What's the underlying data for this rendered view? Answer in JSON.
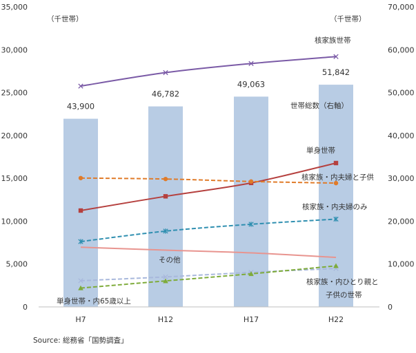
{
  "chart_data": {
    "type": "bar+line",
    "categories": [
      "H7",
      "H12",
      "H17",
      "H22"
    ],
    "left_axis": {
      "unit": "（千世帯）",
      "ylim": [
        0,
        35000
      ],
      "ticks": [
        "0",
        "5,000",
        "10,000",
        "15,000",
        "20,000",
        "25,000",
        "30,000",
        "35,000"
      ]
    },
    "right_axis": {
      "unit": "（千世帯）",
      "ylim": [
        0,
        70000
      ],
      "ticks": [
        "0",
        "10,000",
        "20,000",
        "30,000",
        "40,000",
        "50,000",
        "60,000",
        "70,000"
      ]
    },
    "bars": {
      "name": "世帯総数（右軸）",
      "axis": "right",
      "color": "#b8cce4",
      "values": [
        43900,
        46782,
        49063,
        51842
      ],
      "value_labels": [
        "43,900",
        "46,782",
        "49,063",
        "51,842"
      ]
    },
    "series": [
      {
        "name": "核家族世帯",
        "color": "#7a5aa6",
        "dash": false,
        "marker": "x",
        "values": [
          25760,
          27330,
          28390,
          29200
        ]
      },
      {
        "name": "単身世帯",
        "color": "#b5403e",
        "dash": false,
        "marker": "square",
        "values": [
          11240,
          12900,
          14460,
          16780
        ]
      },
      {
        "name": "核家族・内夫婦と子供",
        "color": "#e07b29",
        "dash": true,
        "marker": "circle",
        "values": [
          15030,
          14920,
          14630,
          14440
        ]
      },
      {
        "name": "核家族・内夫婦のみ",
        "color": "#2f8fb0",
        "dash": true,
        "marker": "star",
        "values": [
          7620,
          8840,
          9640,
          10240
        ]
      },
      {
        "name": "その他",
        "color": "#e8948f",
        "dash": false,
        "marker": "none",
        "values": [
          6960,
          6620,
          6300,
          5770
        ]
      },
      {
        "name": "核家族・内ひとり親と子供の世帯",
        "color": "#a8b8dc",
        "dash": true,
        "marker": "x",
        "values": [
          3050,
          3500,
          4030,
          4480
        ]
      },
      {
        "name": "単身世帯・内65歳以上",
        "color": "#7eab3a",
        "dash": true,
        "marker": "triangle",
        "values": [
          2200,
          3030,
          3860,
          4790
        ]
      }
    ],
    "annotations": [
      "核家族世帯",
      "世帯総数（右軸）",
      "単身世帯",
      "核家族・内夫婦と子供",
      "核家族・内夫婦のみ",
      "その他",
      "核家族・内ひとり親と",
      "子供の世帯",
      "単身世帯・内65歳以上"
    ],
    "source": "Source:  総務省「国勢調査」"
  }
}
